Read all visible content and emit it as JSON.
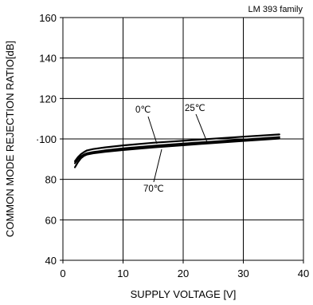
{
  "chart_data": {
    "type": "line",
    "note": "LM 393 family",
    "xlabel": "SUPPLY VOLTAGE [V]",
    "ylabel": "COMMON MODE REJECTION RATIO[dB]",
    "xlim": [
      0,
      40
    ],
    "ylim": [
      40,
      160
    ],
    "x_ticks": [
      0,
      10,
      20,
      30,
      40
    ],
    "y_ticks": [
      40,
      60,
      80,
      100,
      120,
      140,
      160
    ],
    "x_tick_labels": [
      "0",
      "10",
      "20",
      "30",
      "40"
    ],
    "y_tick_labels": [
      "40",
      "60",
      "80",
      "·100",
      "120",
      "140",
      "160"
    ],
    "grid": true,
    "series": [
      {
        "name": "0℃",
        "x": [
          2,
          2.5,
          3,
          3.5,
          4,
          5,
          7,
          10,
          15,
          20,
          25,
          30,
          36
        ],
        "y": [
          89,
          91,
          92.5,
          93.5,
          94.3,
          95,
          95.8,
          96.8,
          98.1,
          99.1,
          100.1,
          101.1,
          102.2
        ]
      },
      {
        "name": "25℃",
        "x": [
          2,
          2.5,
          3,
          3.5,
          4,
          5,
          7,
          10,
          15,
          20,
          25,
          30,
          36
        ],
        "y": [
          88,
          90,
          91.4,
          92.3,
          92.9,
          93.5,
          94.3,
          95.3,
          96.6,
          97.7,
          98.7,
          99.7,
          100.9
        ]
      },
      {
        "name": "70℃",
        "x": [
          2,
          2.5,
          3,
          3.5,
          4,
          5,
          7,
          10,
          15,
          20,
          25,
          30,
          36
        ],
        "y": [
          86,
          88.5,
          90.5,
          91.6,
          92.3,
          92.9,
          93.6,
          94.5,
          95.8,
          96.9,
          98,
          99,
          100.2
        ]
      }
    ]
  }
}
